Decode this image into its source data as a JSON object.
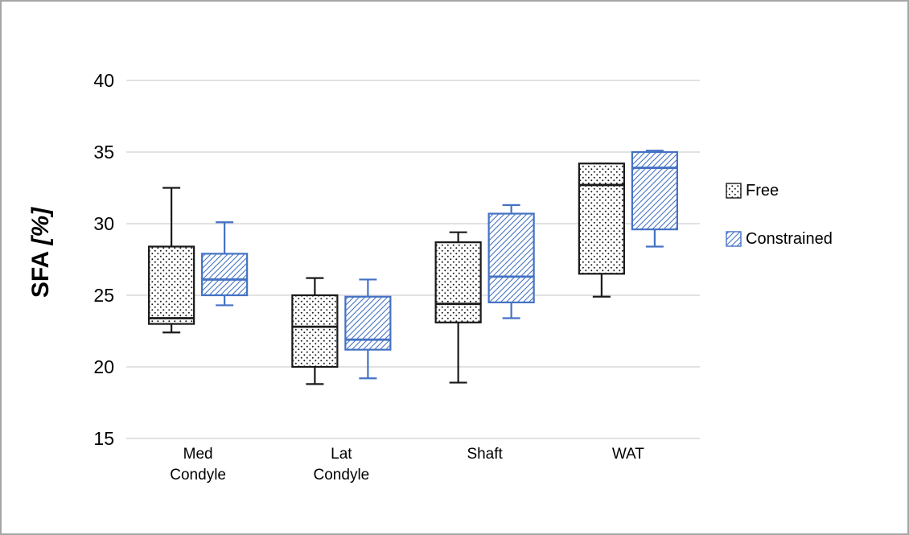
{
  "chart_data": {
    "type": "boxplot",
    "title": "",
    "ylabel_main": "SFA",
    "ylabel_unit": "[%]",
    "ylim": [
      15,
      40
    ],
    "yticks": [
      15,
      20,
      25,
      30,
      35,
      40
    ],
    "grid": "horizontal",
    "legend_position": "right",
    "categories": [
      [
        "Med",
        "Condyle"
      ],
      [
        "Lat",
        "Condyle"
      ],
      [
        "Shaft"
      ],
      [
        "WAT"
      ]
    ],
    "colors": {
      "free": "#1a1a1a",
      "constrained": "#4472c4",
      "gridline": "#d9d9d9",
      "frame_border": "#a6a6a6"
    },
    "series": [
      {
        "name": "Free",
        "color": "#1a1a1a",
        "pattern": "dots",
        "boxes": [
          {
            "whisker_low": 22.4,
            "q1": 23.0,
            "median": 23.4,
            "q3": 28.4,
            "whisker_high": 32.5
          },
          {
            "whisker_low": 18.8,
            "q1": 20.0,
            "median": 22.8,
            "q3": 25.0,
            "whisker_high": 26.2
          },
          {
            "whisker_low": 18.9,
            "q1": 23.1,
            "median": 24.4,
            "q3": 28.7,
            "whisker_high": 29.4
          },
          {
            "whisker_low": 24.9,
            "q1": 26.5,
            "median": 32.7,
            "q3": 34.2,
            "whisker_high": 34.2
          }
        ]
      },
      {
        "name": "Constrained",
        "color": "#4472c4",
        "pattern": "diagonal",
        "boxes": [
          {
            "whisker_low": 24.3,
            "q1": 25.0,
            "median": 26.1,
            "q3": 27.9,
            "whisker_high": 30.1
          },
          {
            "whisker_low": 19.2,
            "q1": 21.2,
            "median": 21.9,
            "q3": 24.9,
            "whisker_high": 26.1
          },
          {
            "whisker_low": 23.4,
            "q1": 24.5,
            "median": 26.3,
            "q3": 30.7,
            "whisker_high": 31.3
          },
          {
            "whisker_low": 28.4,
            "q1": 29.6,
            "median": 33.9,
            "q3": 35.0,
            "whisker_high": 35.1
          }
        ]
      }
    ]
  }
}
